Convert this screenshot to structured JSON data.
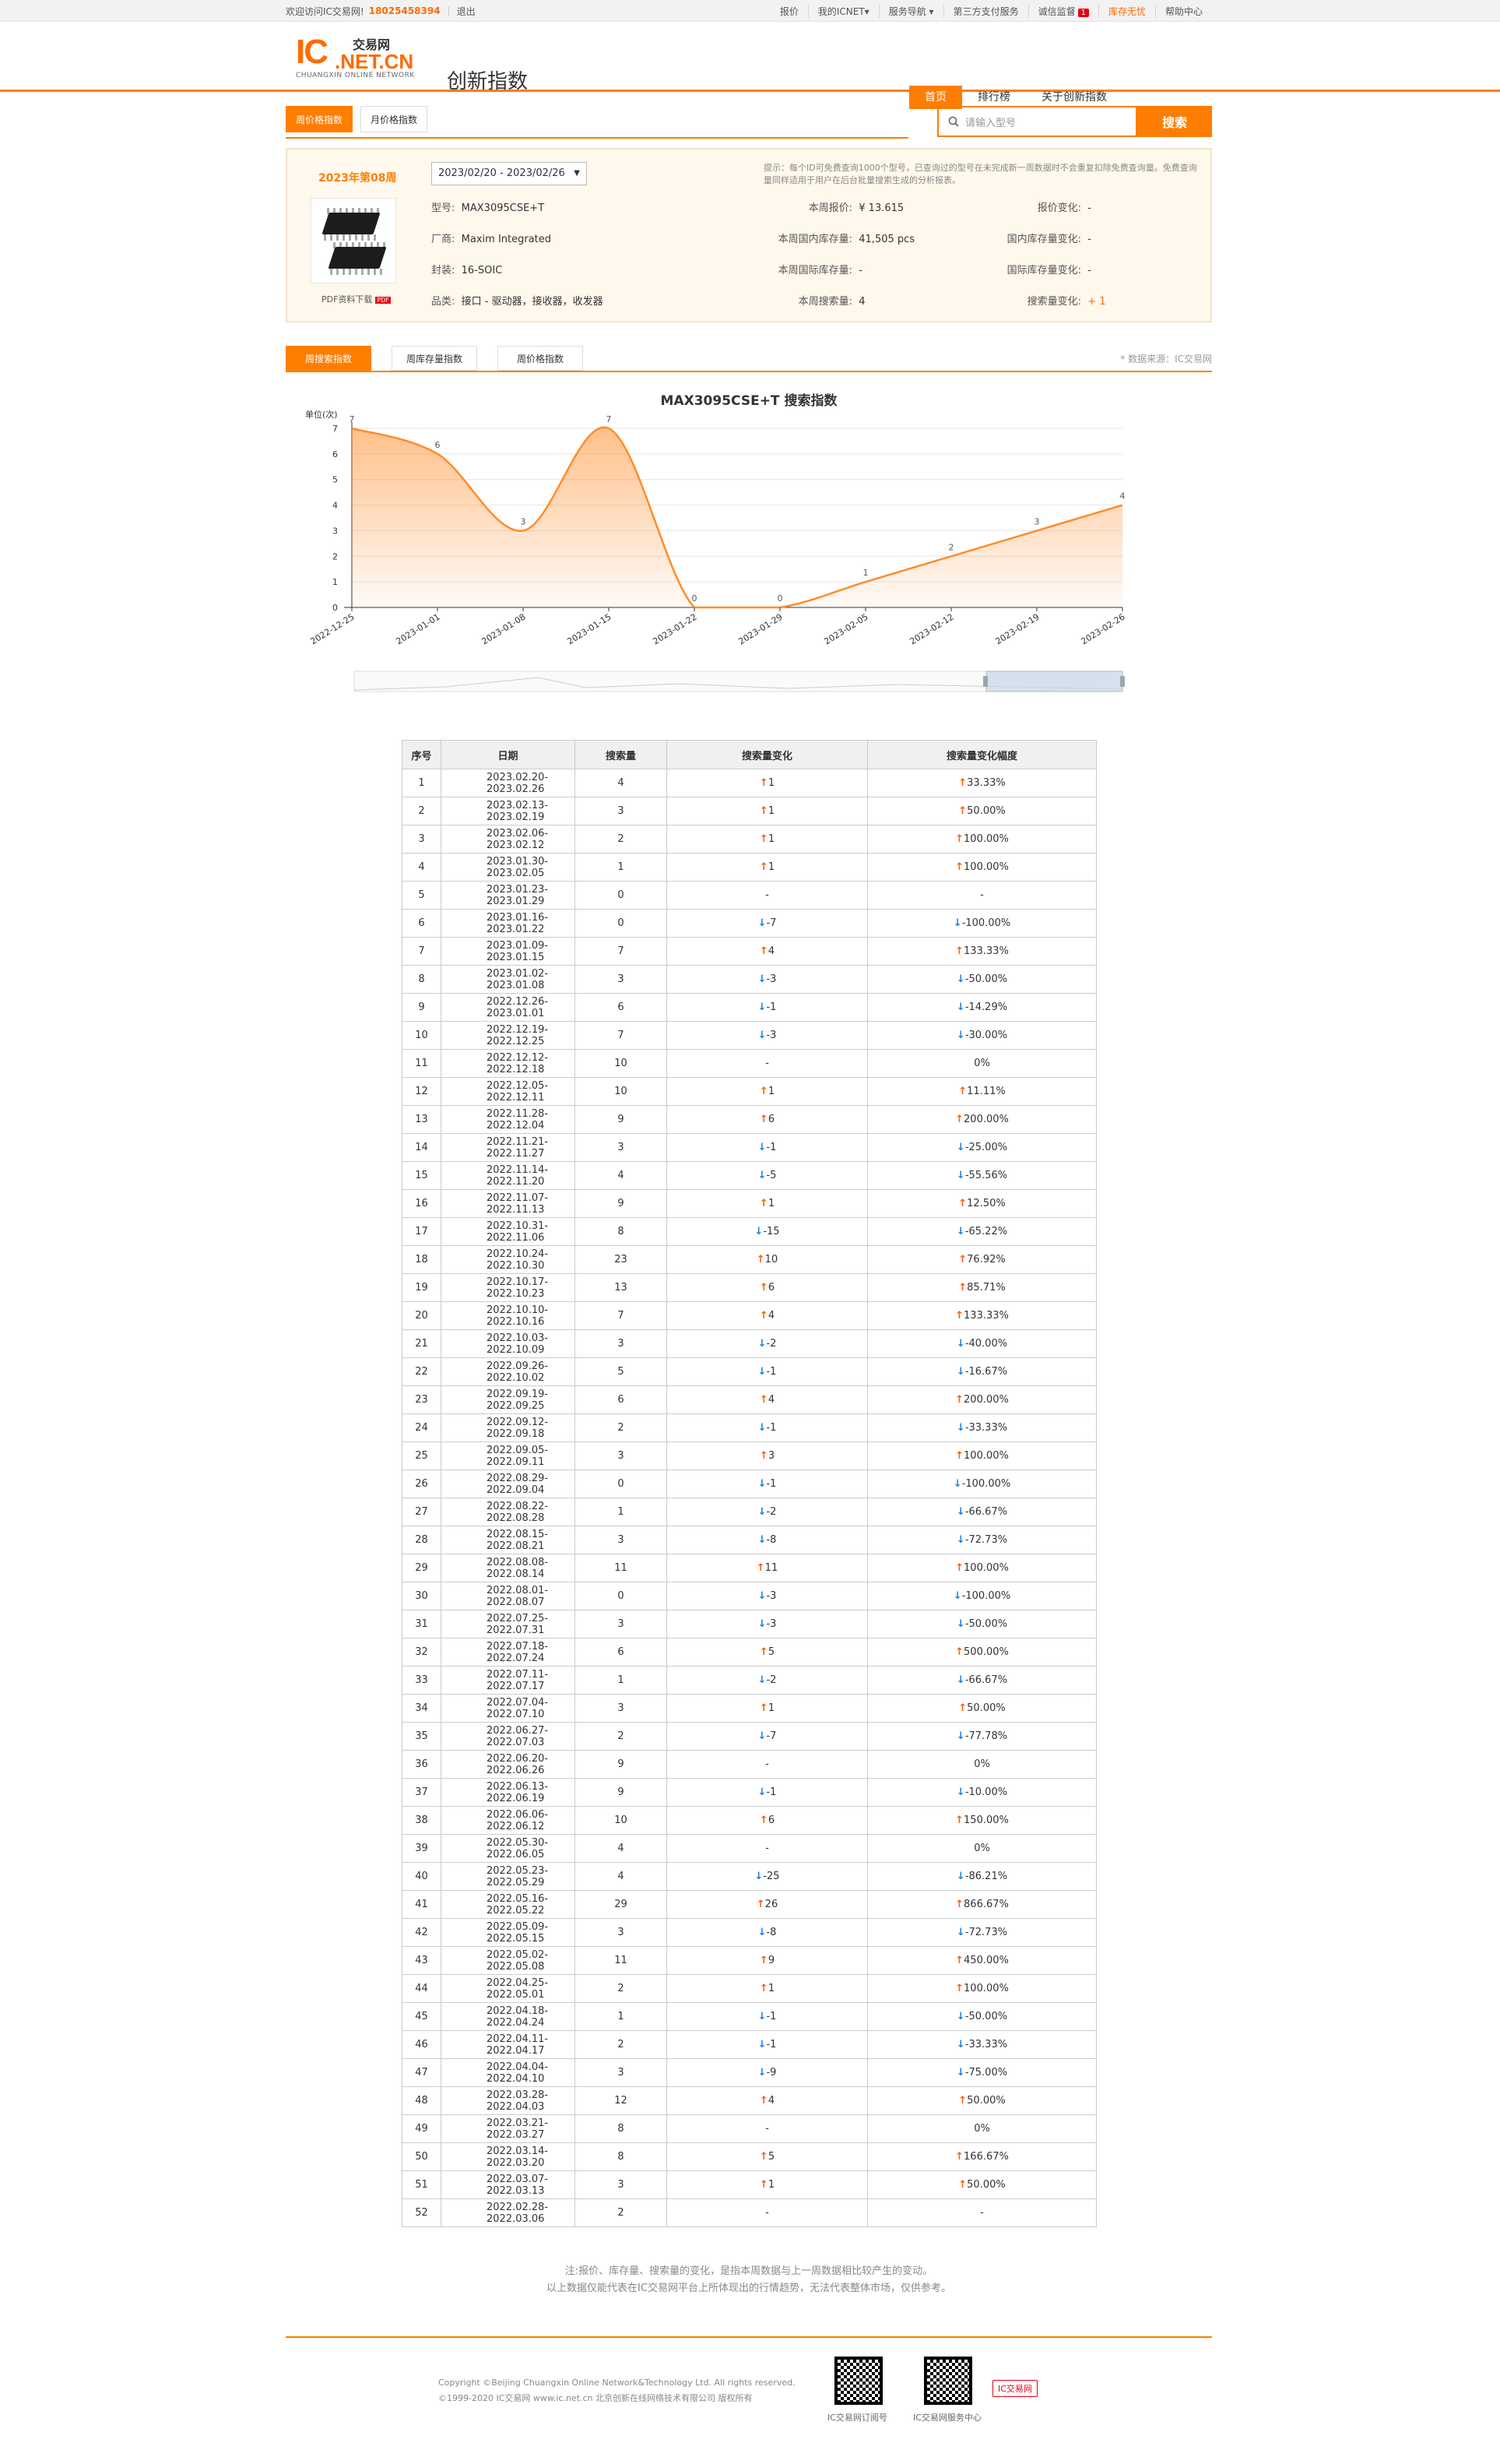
{
  "topbar": {
    "welcome": "欢迎访问IC交易网!",
    "phone": "18025458394",
    "logout": "退出",
    "links": [
      "报价",
      "我的ICNET▾",
      "服务导航 ▾",
      "第三方支付服务",
      "诚信监督",
      "库存无忧",
      "帮助中心"
    ],
    "badge": "1"
  },
  "header": {
    "logo_cn": "交易网",
    "logo_ic": "IC",
    "logo_net": ".NET.CN",
    "logo_sub": "CHUANGXIN ONLINE NETWORK",
    "site_title": "创新指数",
    "nav": [
      "首页",
      "排行榜",
      "关于创新指数"
    ]
  },
  "toolbar": {
    "tabs": [
      "周价格指数",
      "月价格指数"
    ],
    "search_placeholder": "请输入型号",
    "search_button": "搜索"
  },
  "info": {
    "week": "2023年第08周",
    "range": "2023/02/20 - 2023/02/26",
    "tip": "提示：每个ID可免费查询1000个型号，已查询过的型号在未完成新一周数据时不会重复扣除免费查询量。免费查询量同样适用于用户在后台批量搜索生成的分析报表。",
    "pdf_label": "PDF资料下载",
    "pdf_icon": "PDF",
    "model_label": "型号:",
    "model": "MAX3095CSE+T",
    "maker_label": "厂商:",
    "maker": "Maxim Integrated",
    "package_label": "封装:",
    "package": "16-SOIC",
    "category_label": "品类:",
    "category": "接口 - 驱动器，接收器，收发器",
    "price_label": "本周报价:",
    "price": "¥ 13.615",
    "dom_stock_label": "本周国内库存量:",
    "dom_stock": "41,505  pcs",
    "intl_stock_label": "本周国际库存量:",
    "intl_stock": "-",
    "search_label": "本周搜索量:",
    "search": "4",
    "price_change_label": "报价变化:",
    "price_change": "-",
    "dom_change_label": "国内库存量变化:",
    "dom_change": "-",
    "intl_change_label": "国际库存量变化:",
    "intl_change": "-",
    "search_change_label": "搜索量变化:",
    "search_change": "+ 1"
  },
  "sectabs": {
    "tabs": [
      "周搜索指数",
      "周库存量指数",
      "周价格指数"
    ],
    "source": "* 数据来源：IC交易网"
  },
  "chart_data": {
    "type": "area",
    "title": "MAX3095CSE+T 搜索指数",
    "ylabel": "单位(次)",
    "ylim": [
      0,
      7
    ],
    "yticks": [
      0,
      1,
      2,
      3,
      4,
      5,
      6,
      7
    ],
    "categories": [
      "2022-12-25",
      "2023-01-01",
      "2023-01-08",
      "2023-01-15",
      "2023-01-22",
      "2023-01-29",
      "2023-02-05",
      "2023-02-12",
      "2023-02-19",
      "2023-02-26"
    ],
    "values": [
      7,
      6,
      3,
      7,
      0,
      0,
      1,
      2,
      3,
      4
    ],
    "color": "#ff8c2a",
    "grid": true
  },
  "table": {
    "headers": [
      "序号",
      "日期",
      "搜索量",
      "搜索量变化",
      "搜索量变化幅度"
    ],
    "rows": [
      [
        "1",
        "2023.02.20-2023.02.26",
        "4",
        "up",
        "1",
        "up",
        "33.33%"
      ],
      [
        "2",
        "2023.02.13-2023.02.19",
        "3",
        "up",
        "1",
        "up",
        "50.00%"
      ],
      [
        "3",
        "2023.02.06-2023.02.12",
        "2",
        "up",
        "1",
        "up",
        "100.00%"
      ],
      [
        "4",
        "2023.01.30-2023.02.05",
        "1",
        "up",
        "1",
        "up",
        "100.00%"
      ],
      [
        "5",
        "2023.01.23-2023.01.29",
        "0",
        "none",
        "-",
        "none",
        "-"
      ],
      [
        "6",
        "2023.01.16-2023.01.22",
        "0",
        "down",
        "-7",
        "down",
        "-100.00%"
      ],
      [
        "7",
        "2023.01.09-2023.01.15",
        "7",
        "up",
        "4",
        "up",
        "133.33%"
      ],
      [
        "8",
        "2023.01.02-2023.01.08",
        "3",
        "down",
        "-3",
        "down",
        "-50.00%"
      ],
      [
        "9",
        "2022.12.26-2023.01.01",
        "6",
        "down",
        "-1",
        "down",
        "-14.29%"
      ],
      [
        "10",
        "2022.12.19-2022.12.25",
        "7",
        "down",
        "-3",
        "down",
        "-30.00%"
      ],
      [
        "11",
        "2022.12.12-2022.12.18",
        "10",
        "none",
        "-",
        "none",
        "0%"
      ],
      [
        "12",
        "2022.12.05-2022.12.11",
        "10",
        "up",
        "1",
        "up",
        "11.11%"
      ],
      [
        "13",
        "2022.11.28-2022.12.04",
        "9",
        "up",
        "6",
        "up",
        "200.00%"
      ],
      [
        "14",
        "2022.11.21-2022.11.27",
        "3",
        "down",
        "-1",
        "down",
        "-25.00%"
      ],
      [
        "15",
        "2022.11.14-2022.11.20",
        "4",
        "down",
        "-5",
        "down",
        "-55.56%"
      ],
      [
        "16",
        "2022.11.07-2022.11.13",
        "9",
        "up",
        "1",
        "up",
        "12.50%"
      ],
      [
        "17",
        "2022.10.31-2022.11.06",
        "8",
        "down",
        "-15",
        "down",
        "-65.22%"
      ],
      [
        "18",
        "2022.10.24-2022.10.30",
        "23",
        "up",
        "10",
        "up",
        "76.92%"
      ],
      [
        "19",
        "2022.10.17-2022.10.23",
        "13",
        "up",
        "6",
        "up",
        "85.71%"
      ],
      [
        "20",
        "2022.10.10-2022.10.16",
        "7",
        "up",
        "4",
        "up",
        "133.33%"
      ],
      [
        "21",
        "2022.10.03-2022.10.09",
        "3",
        "down",
        "-2",
        "down",
        "-40.00%"
      ],
      [
        "22",
        "2022.09.26-2022.10.02",
        "5",
        "down",
        "-1",
        "down",
        "-16.67%"
      ],
      [
        "23",
        "2022.09.19-2022.09.25",
        "6",
        "up",
        "4",
        "up",
        "200.00%"
      ],
      [
        "24",
        "2022.09.12-2022.09.18",
        "2",
        "down",
        "-1",
        "down",
        "-33.33%"
      ],
      [
        "25",
        "2022.09.05-2022.09.11",
        "3",
        "up",
        "3",
        "up",
        "100.00%"
      ],
      [
        "26",
        "2022.08.29-2022.09.04",
        "0",
        "down",
        "-1",
        "down",
        "-100.00%"
      ],
      [
        "27",
        "2022.08.22-2022.08.28",
        "1",
        "down",
        "-2",
        "down",
        "-66.67%"
      ],
      [
        "28",
        "2022.08.15-2022.08.21",
        "3",
        "down",
        "-8",
        "down",
        "-72.73%"
      ],
      [
        "29",
        "2022.08.08-2022.08.14",
        "11",
        "up",
        "11",
        "up",
        "100.00%"
      ],
      [
        "30",
        "2022.08.01-2022.08.07",
        "0",
        "down",
        "-3",
        "down",
        "-100.00%"
      ],
      [
        "31",
        "2022.07.25-2022.07.31",
        "3",
        "down",
        "-3",
        "down",
        "-50.00%"
      ],
      [
        "32",
        "2022.07.18-2022.07.24",
        "6",
        "up",
        "5",
        "up",
        "500.00%"
      ],
      [
        "33",
        "2022.07.11-2022.07.17",
        "1",
        "down",
        "-2",
        "down",
        "-66.67%"
      ],
      [
        "34",
        "2022.07.04-2022.07.10",
        "3",
        "up",
        "1",
        "up",
        "50.00%"
      ],
      [
        "35",
        "2022.06.27-2022.07.03",
        "2",
        "down",
        "-7",
        "down",
        "-77.78%"
      ],
      [
        "36",
        "2022.06.20-2022.06.26",
        "9",
        "none",
        "-",
        "none",
        "0%"
      ],
      [
        "37",
        "2022.06.13-2022.06.19",
        "9",
        "down",
        "-1",
        "down",
        "-10.00%"
      ],
      [
        "38",
        "2022.06.06-2022.06.12",
        "10",
        "up",
        "6",
        "up",
        "150.00%"
      ],
      [
        "39",
        "2022.05.30-2022.06.05",
        "4",
        "none",
        "-",
        "none",
        "0%"
      ],
      [
        "40",
        "2022.05.23-2022.05.29",
        "4",
        "down",
        "-25",
        "down",
        "-86.21%"
      ],
      [
        "41",
        "2022.05.16-2022.05.22",
        "29",
        "up",
        "26",
        "up",
        "866.67%"
      ],
      [
        "42",
        "2022.05.09-2022.05.15",
        "3",
        "down",
        "-8",
        "down",
        "-72.73%"
      ],
      [
        "43",
        "2022.05.02-2022.05.08",
        "11",
        "up",
        "9",
        "up",
        "450.00%"
      ],
      [
        "44",
        "2022.04.25-2022.05.01",
        "2",
        "up",
        "1",
        "up",
        "100.00%"
      ],
      [
        "45",
        "2022.04.18-2022.04.24",
        "1",
        "down",
        "-1",
        "down",
        "-50.00%"
      ],
      [
        "46",
        "2022.04.11-2022.04.17",
        "2",
        "down",
        "-1",
        "down",
        "-33.33%"
      ],
      [
        "47",
        "2022.04.04-2022.04.10",
        "3",
        "down",
        "-9",
        "down",
        "-75.00%"
      ],
      [
        "48",
        "2022.03.28-2022.04.03",
        "12",
        "up",
        "4",
        "up",
        "50.00%"
      ],
      [
        "49",
        "2022.03.21-2022.03.27",
        "8",
        "none",
        "-",
        "none",
        "0%"
      ],
      [
        "50",
        "2022.03.14-2022.03.20",
        "8",
        "up",
        "5",
        "up",
        "166.67%"
      ],
      [
        "51",
        "2022.03.07-2022.03.13",
        "3",
        "up",
        "1",
        "up",
        "50.00%"
      ],
      [
        "52",
        "2022.02.28-2022.03.06",
        "2",
        "none",
        "-",
        "none",
        "-"
      ]
    ]
  },
  "note": {
    "line1": "注:报价、库存量、搜索量的变化，是指本周数据与上一周数据相比较产生的变动。",
    "line2": "以上数据仅能代表在IC交易网平台上所体现出的行情趋势，无法代表整体市场，仅供参考。"
  },
  "footer": {
    "copy1": "Copyright ©Beijing Chuangxin Online Network&Technology Ltd. All rights reserved.",
    "copy2": "©1999-2020 IC交易网 www.ic.net.cn 北京创新在线网络技术有限公司 版权所有",
    "qr1_label": "IC交易网订阅号",
    "qr2_label": "IC交易网服务中心",
    "weibo": "IC交易网"
  }
}
